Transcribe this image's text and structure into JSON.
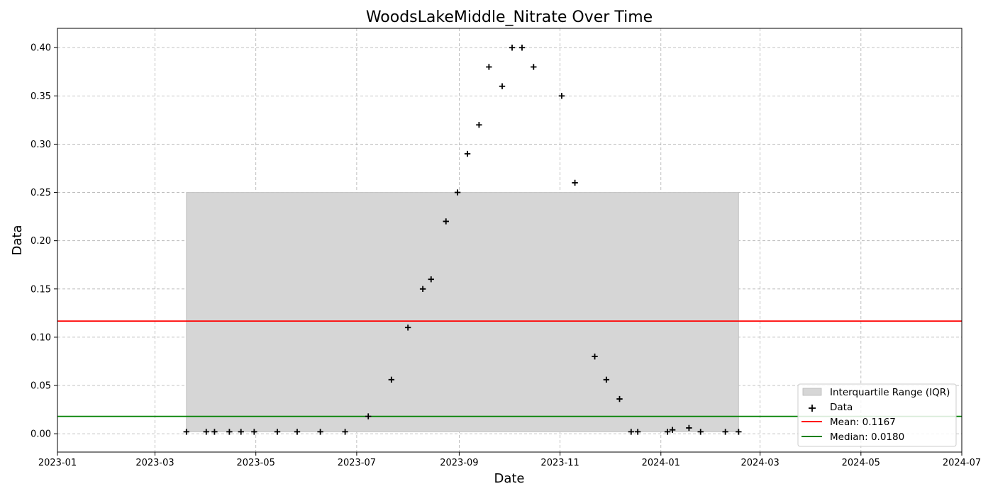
{
  "chart_data": {
    "type": "scatter",
    "title": "WoodsLakeMiddle_Nitrate Over Time",
    "xlabel": "Date",
    "ylabel": "Data",
    "x_axis_type": "date",
    "xlim": [
      "2023-01-01",
      "2024-07-01"
    ],
    "ylim": [
      -0.019,
      0.42
    ],
    "x_ticks": [
      "2023-01-01",
      "2023-03-01",
      "2023-05-01",
      "2023-07-01",
      "2023-09-01",
      "2023-11-01",
      "2024-01-01",
      "2024-03-01",
      "2024-05-01",
      "2024-07-01"
    ],
    "x_tick_labels": [
      "2023-01",
      "2023-03",
      "2023-05",
      "2023-07",
      "2023-09",
      "2023-11",
      "2024-01",
      "2024-03",
      "2024-05",
      "2024-07"
    ],
    "y_ticks": [
      0.0,
      0.05,
      0.1,
      0.15,
      0.2,
      0.25,
      0.3,
      0.35,
      0.4
    ],
    "y_tick_labels": [
      "0.00",
      "0.05",
      "0.10",
      "0.15",
      "0.20",
      "0.25",
      "0.30",
      "0.35",
      "0.40"
    ],
    "grid": true,
    "legend_position": "lower-right",
    "series": [
      {
        "name": "Data",
        "marker": "plus",
        "color": "#000000",
        "points": [
          {
            "x": "2023-03-20",
            "y": 0.002
          },
          {
            "x": "2023-04-01",
            "y": 0.002
          },
          {
            "x": "2023-04-06",
            "y": 0.002
          },
          {
            "x": "2023-04-15",
            "y": 0.002
          },
          {
            "x": "2023-04-22",
            "y": 0.002
          },
          {
            "x": "2023-04-30",
            "y": 0.002
          },
          {
            "x": "2023-05-14",
            "y": 0.002
          },
          {
            "x": "2023-05-26",
            "y": 0.002
          },
          {
            "x": "2023-06-09",
            "y": 0.002
          },
          {
            "x": "2023-06-24",
            "y": 0.002
          },
          {
            "x": "2023-07-08",
            "y": 0.018
          },
          {
            "x": "2023-07-22",
            "y": 0.056
          },
          {
            "x": "2023-08-01",
            "y": 0.11
          },
          {
            "x": "2023-08-10",
            "y": 0.15
          },
          {
            "x": "2023-08-15",
            "y": 0.16
          },
          {
            "x": "2023-08-24",
            "y": 0.22
          },
          {
            "x": "2023-08-31",
            "y": 0.25
          },
          {
            "x": "2023-09-06",
            "y": 0.29
          },
          {
            "x": "2023-09-13",
            "y": 0.32
          },
          {
            "x": "2023-09-19",
            "y": 0.38
          },
          {
            "x": "2023-09-27",
            "y": 0.36
          },
          {
            "x": "2023-10-03",
            "y": 0.4
          },
          {
            "x": "2023-10-09",
            "y": 0.4
          },
          {
            "x": "2023-10-16",
            "y": 0.38
          },
          {
            "x": "2023-11-02",
            "y": 0.35
          },
          {
            "x": "2023-11-10",
            "y": 0.26
          },
          {
            "x": "2023-11-22",
            "y": 0.08
          },
          {
            "x": "2023-11-29",
            "y": 0.056
          },
          {
            "x": "2023-12-07",
            "y": 0.036
          },
          {
            "x": "2023-12-14",
            "y": 0.002
          },
          {
            "x": "2023-12-18",
            "y": 0.002
          },
          {
            "x": "2024-01-05",
            "y": 0.002
          },
          {
            "x": "2024-01-08",
            "y": 0.004
          },
          {
            "x": "2024-01-18",
            "y": 0.006
          },
          {
            "x": "2024-01-25",
            "y": 0.002
          },
          {
            "x": "2024-02-09",
            "y": 0.002
          },
          {
            "x": "2024-02-17",
            "y": 0.002
          }
        ]
      }
    ],
    "mean": {
      "label": "Mean: 0.1167",
      "value": 0.1167,
      "color": "#ff0000"
    },
    "median": {
      "label": "Median: 0.0180",
      "value": 0.018,
      "color": "#008000"
    },
    "iqr": {
      "label": "Interquartile Range (IQR)",
      "x_start": "2023-03-20",
      "x_end": "2024-02-17",
      "y_low": 0.002,
      "y_high": 0.25,
      "color": "#d6d6d6"
    },
    "legend": [
      "Interquartile Range (IQR)",
      "Data",
      "Mean: 0.1167",
      "Median: 0.0180"
    ]
  }
}
